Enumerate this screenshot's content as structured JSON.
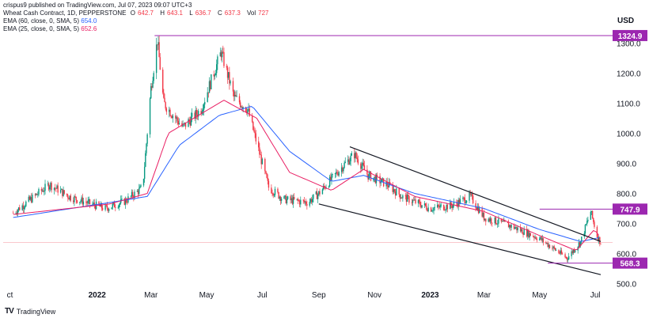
{
  "header": {
    "published": "crispus9 published on TradingView.com, Jul 07, 2023 09:07 UTC+3",
    "title": "Wheat Cash Contract, 1D, PEPPERSTONE",
    "ohlc": [
      {
        "k": "O",
        "v": "642.7"
      },
      {
        "k": "H",
        "v": "643.1"
      },
      {
        "k": "L",
        "v": "636.7"
      },
      {
        "k": "C",
        "v": "637.3"
      },
      {
        "k": "Vol",
        "v": "727"
      }
    ],
    "ema60": {
      "label": "EMA (60, close, 0, SMA, 5)",
      "value": "654.0"
    },
    "ema25": {
      "label": "EMA (25, close, 0, SMA, 5)",
      "value": "652.6"
    }
  },
  "brand": "TradingView",
  "colors": {
    "up": "#089981",
    "down": "#f23645",
    "ema60": "#2962ff",
    "ema25": "#e91e63",
    "level": "#9c27b0",
    "channel": "#131722"
  },
  "chart_data": {
    "type": "candlestick",
    "currency": "USD",
    "yticks": [
      500,
      600,
      700,
      800,
      900,
      1000,
      1100,
      1200,
      1300
    ],
    "ylabels": [
      "500.0",
      "600.0",
      "700.0",
      "800.0",
      "900.0",
      "1000.0",
      "1100.0",
      "1200.0",
      "1300.0"
    ],
    "ylim": [
      470,
      1380
    ],
    "xlabels": [
      "ct",
      "2022",
      "Mar",
      "May",
      "Jul",
      "Sep",
      "Nov",
      "2023",
      "Mar",
      "May",
      "Jul"
    ],
    "levels": [
      {
        "value": 1324.9,
        "label": "1324.9"
      },
      {
        "value": 747.9,
        "label": "747.9"
      },
      {
        "value": 568.3,
        "label": "568.3"
      }
    ],
    "last_close": 637.3,
    "price_path": [
      {
        "date": "2021-10-01",
        "close": 735
      },
      {
        "date": "2021-11-10",
        "close": 830
      },
      {
        "date": "2021-12-01",
        "close": 790
      },
      {
        "date": "2021-12-20",
        "close": 770
      },
      {
        "date": "2022-01-10",
        "close": 750
      },
      {
        "date": "2022-02-01",
        "close": 775
      },
      {
        "date": "2022-02-20",
        "close": 820
      },
      {
        "date": "2022-03-01",
        "close": 1150
      },
      {
        "date": "2022-03-08",
        "close": 1310
      },
      {
        "date": "2022-03-15",
        "close": 1100
      },
      {
        "date": "2022-04-05",
        "close": 1020
      },
      {
        "date": "2022-04-25",
        "close": 1080
      },
      {
        "date": "2022-05-17",
        "close": 1270
      },
      {
        "date": "2022-05-31",
        "close": 1120
      },
      {
        "date": "2022-06-15",
        "close": 1080
      },
      {
        "date": "2022-07-08",
        "close": 820
      },
      {
        "date": "2022-07-25",
        "close": 780
      },
      {
        "date": "2022-08-20",
        "close": 770
      },
      {
        "date": "2022-09-01",
        "close": 800
      },
      {
        "date": "2022-09-30",
        "close": 900
      },
      {
        "date": "2022-10-10",
        "close": 930
      },
      {
        "date": "2022-10-25",
        "close": 860
      },
      {
        "date": "2022-11-15",
        "close": 830
      },
      {
        "date": "2022-12-01",
        "close": 790
      },
      {
        "date": "2023-01-01",
        "close": 750
      },
      {
        "date": "2023-01-25",
        "close": 760
      },
      {
        "date": "2023-02-14",
        "close": 790
      },
      {
        "date": "2023-03-01",
        "close": 720
      },
      {
        "date": "2023-04-01",
        "close": 690
      },
      {
        "date": "2023-05-01",
        "close": 650
      },
      {
        "date": "2023-05-31",
        "close": 585
      },
      {
        "date": "2023-06-15",
        "close": 640
      },
      {
        "date": "2023-06-26",
        "close": 740
      },
      {
        "date": "2023-07-03",
        "close": 660
      },
      {
        "date": "2023-07-07",
        "close": 637
      }
    ],
    "ema60_path": [
      {
        "date": "2021-10-01",
        "value": 720
      },
      {
        "date": "2022-01-15",
        "value": 770
      },
      {
        "date": "2022-02-25",
        "value": 790
      },
      {
        "date": "2022-04-01",
        "value": 960
      },
      {
        "date": "2022-05-15",
        "value": 1060
      },
      {
        "date": "2022-06-20",
        "value": 1090
      },
      {
        "date": "2022-07-31",
        "value": 940
      },
      {
        "date": "2022-09-15",
        "value": 840
      },
      {
        "date": "2022-10-20",
        "value": 860
      },
      {
        "date": "2022-12-15",
        "value": 800
      },
      {
        "date": "2023-03-01",
        "value": 750
      },
      {
        "date": "2023-05-01",
        "value": 680
      },
      {
        "date": "2023-06-15",
        "value": 640
      },
      {
        "date": "2023-07-07",
        "value": 654
      }
    ],
    "ema25_path": [
      {
        "date": "2021-10-01",
        "value": 730
      },
      {
        "date": "2022-01-15",
        "value": 765
      },
      {
        "date": "2022-02-25",
        "value": 800
      },
      {
        "date": "2022-03-20",
        "value": 1000
      },
      {
        "date": "2022-05-20",
        "value": 1110
      },
      {
        "date": "2022-06-25",
        "value": 1050
      },
      {
        "date": "2022-07-31",
        "value": 870
      },
      {
        "date": "2022-09-15",
        "value": 810
      },
      {
        "date": "2022-10-20",
        "value": 880
      },
      {
        "date": "2022-12-15",
        "value": 790
      },
      {
        "date": "2023-03-01",
        "value": 740
      },
      {
        "date": "2023-05-01",
        "value": 660
      },
      {
        "date": "2023-06-10",
        "value": 610
      },
      {
        "date": "2023-06-30",
        "value": 680
      },
      {
        "date": "2023-07-07",
        "value": 652.6
      }
    ],
    "channel_upper": [
      {
        "date": "2022-10-05",
        "value": 955
      },
      {
        "date": "2023-07-07",
        "value": 640
      }
    ],
    "channel_lower": [
      {
        "date": "2022-09-01",
        "value": 765
      },
      {
        "date": "2023-07-07",
        "value": 530
      }
    ]
  }
}
